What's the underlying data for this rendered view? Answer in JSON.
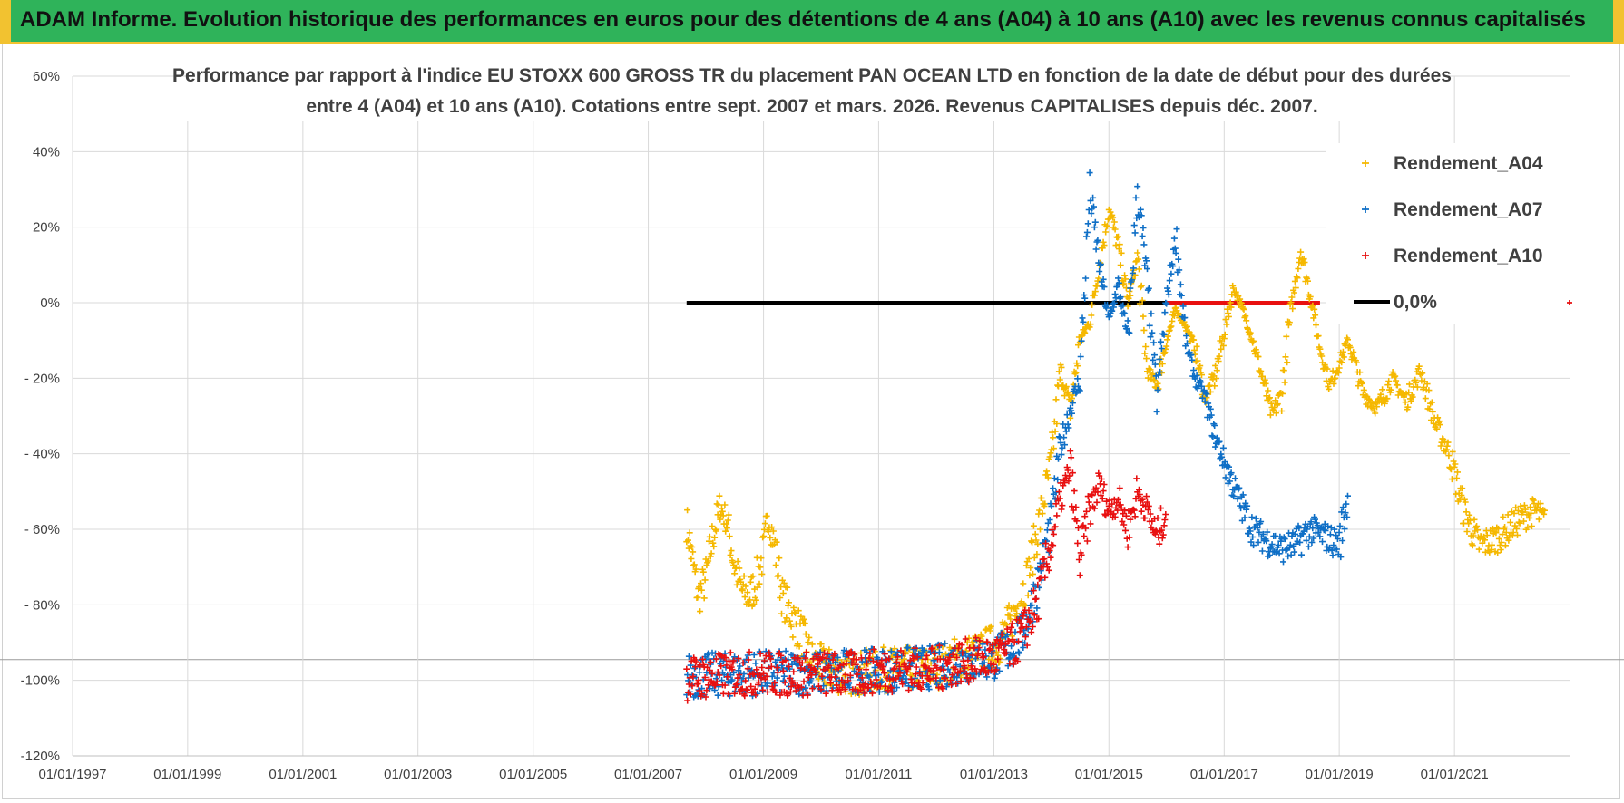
{
  "header": {
    "title": "ADAM Informe. Evolution historique des performances en euros pour des détentions de 4 ans (A04) à 10 ans (A10) avec les revenus connus capitalisés"
  },
  "colors": {
    "banner": "#2fb35a",
    "accent": "#f2c230",
    "a04": "#f5b800",
    "a07": "#0f6fc6",
    "a10": "#e81010",
    "zero": "#000000",
    "grid": "#d9d9d9"
  },
  "chart_data": {
    "type": "scatter",
    "title_line1": "Performance par rapport à l'indice EU STOXX 600 GROSS TR  du placement PAN OCEAN LTD en fonction de la date de début pour des durées",
    "title_line2": "entre 4 (A04) et 10 ans (A10). Cotations entre sept. 2007 et mars. 2026. Revenus CAPITALISES depuis déc. 2007.",
    "xlabel": "",
    "ylabel": "",
    "x_ticks": [
      "01/01/1997",
      "01/01/1999",
      "01/01/2001",
      "01/01/2003",
      "01/01/2005",
      "01/01/2007",
      "01/01/2009",
      "01/01/2011",
      "01/01/2013",
      "01/01/2015",
      "01/01/2017",
      "01/01/2019",
      "01/01/2021"
    ],
    "xlim": [
      "1997-01-01",
      "2023-01-01"
    ],
    "y_ticks": [
      "60%",
      "40%",
      "20%",
      "0%",
      "- 20%",
      "- 40%",
      "- 60%",
      "- 80%",
      "-100%",
      "-120%"
    ],
    "ylim": [
      -120,
      60
    ],
    "grid": true,
    "legend_position": "top-right",
    "legend": [
      "Rendement_A04",
      "Rendement_A07",
      "Rendement_A10",
      "0,0%"
    ],
    "series": [
      {
        "name": "Rendement_A04",
        "color": "#f5b800",
        "points": [
          [
            "2007-09-01",
            -58
          ],
          [
            "2007-10-15",
            -70
          ],
          [
            "2007-11-15",
            -78
          ],
          [
            "2008-01-01",
            -73
          ],
          [
            "2008-02-15",
            -62
          ],
          [
            "2008-04-01",
            -54
          ],
          [
            "2008-05-15",
            -58
          ],
          [
            "2008-07-01",
            -70
          ],
          [
            "2008-08-15",
            -76
          ],
          [
            "2008-10-01",
            -78
          ],
          [
            "2008-11-15",
            -74
          ],
          [
            "2009-01-01",
            -66
          ],
          [
            "2009-02-01",
            -56
          ],
          [
            "2009-03-15",
            -65
          ],
          [
            "2009-05-01",
            -78
          ],
          [
            "2009-07-01",
            -83
          ],
          [
            "2009-09-01",
            -88
          ],
          [
            "2009-11-01",
            -95
          ],
          [
            "2010-02-01",
            -97
          ],
          [
            "2010-06-01",
            -98
          ],
          [
            "2010-10-01",
            -98
          ],
          [
            "2011-02-01",
            -97
          ],
          [
            "2011-06-01",
            -97
          ],
          [
            "2011-10-01",
            -97
          ],
          [
            "2012-02-01",
            -96
          ],
          [
            "2012-06-01",
            -94
          ],
          [
            "2012-10-01",
            -93
          ],
          [
            "2013-02-01",
            -90
          ],
          [
            "2013-05-01",
            -84
          ],
          [
            "2013-08-01",
            -73
          ],
          [
            "2013-11-01",
            -55
          ],
          [
            "2014-01-01",
            -42
          ],
          [
            "2014-03-01",
            -18
          ],
          [
            "2014-05-01",
            -28
          ],
          [
            "2014-07-01",
            -10
          ],
          [
            "2014-09-01",
            -5
          ],
          [
            "2014-11-01",
            10
          ],
          [
            "2015-01-01",
            25
          ],
          [
            "2015-03-01",
            15
          ],
          [
            "2015-05-01",
            0
          ],
          [
            "2015-07-01",
            12
          ],
          [
            "2015-09-01",
            -18
          ],
          [
            "2015-11-01",
            -22
          ],
          [
            "2016-01-01",
            -10
          ],
          [
            "2016-03-01",
            -2
          ],
          [
            "2016-05-01",
            -6
          ],
          [
            "2016-07-01",
            -12
          ],
          [
            "2016-09-01",
            -25
          ],
          [
            "2016-11-01",
            -20
          ],
          [
            "2017-01-01",
            -8
          ],
          [
            "2017-03-01",
            4
          ],
          [
            "2017-05-01",
            -2
          ],
          [
            "2017-07-01",
            -10
          ],
          [
            "2017-09-01",
            -20
          ],
          [
            "2017-11-01",
            -30
          ],
          [
            "2018-01-01",
            -24
          ],
          [
            "2018-03-01",
            -2
          ],
          [
            "2018-05-01",
            14
          ],
          [
            "2018-07-01",
            2
          ],
          [
            "2018-09-01",
            -12
          ],
          [
            "2018-11-01",
            -22
          ],
          [
            "2019-01-01",
            -16
          ],
          [
            "2019-03-01",
            -10
          ],
          [
            "2019-06-01",
            -24
          ],
          [
            "2019-09-01",
            -28
          ],
          [
            "2019-12-01",
            -20
          ],
          [
            "2020-03-01",
            -26
          ],
          [
            "2020-06-01",
            -18
          ],
          [
            "2020-09-01",
            -32
          ],
          [
            "2020-12-01",
            -40
          ],
          [
            "2021-03-01",
            -55
          ],
          [
            "2021-06-01",
            -64
          ],
          [
            "2021-09-01",
            -63
          ],
          [
            "2021-12-01",
            -60
          ],
          [
            "2022-03-01",
            -57
          ],
          [
            "2022-06-01",
            -55
          ],
          [
            "2022-08-01",
            -58
          ]
        ]
      },
      {
        "name": "Rendement_A07",
        "color": "#0f6fc6",
        "points": [
          [
            "2007-09-01",
            -99
          ],
          [
            "2008-01-01",
            -98.5
          ],
          [
            "2008-06-01",
            -98.5
          ],
          [
            "2009-01-01",
            -98
          ],
          [
            "2009-06-01",
            -98
          ],
          [
            "2010-01-01",
            -98
          ],
          [
            "2010-06-01",
            -97.5
          ],
          [
            "2011-01-01",
            -97.5
          ],
          [
            "2011-06-01",
            -97
          ],
          [
            "2012-01-01",
            -96.5
          ],
          [
            "2012-06-01",
            -95
          ],
          [
            "2013-01-01",
            -94
          ],
          [
            "2013-04-01",
            -92
          ],
          [
            "2013-07-01",
            -88
          ],
          [
            "2013-10-01",
            -75
          ],
          [
            "2014-01-01",
            -58
          ],
          [
            "2014-03-01",
            -38
          ],
          [
            "2014-05-01",
            -28
          ],
          [
            "2014-07-01",
            -20
          ],
          [
            "2014-09-01",
            30
          ],
          [
            "2014-11-01",
            10
          ],
          [
            "2015-01-01",
            -5
          ],
          [
            "2015-03-01",
            5
          ],
          [
            "2015-05-01",
            -10
          ],
          [
            "2015-07-01",
            30
          ],
          [
            "2015-09-01",
            5
          ],
          [
            "2015-11-01",
            -25
          ],
          [
            "2016-01-01",
            0
          ],
          [
            "2016-03-01",
            18
          ],
          [
            "2016-05-01",
            -10
          ],
          [
            "2016-07-01",
            -20
          ],
          [
            "2016-09-01",
            -25
          ],
          [
            "2016-11-01",
            -35
          ],
          [
            "2017-01-01",
            -42
          ],
          [
            "2017-04-01",
            -52
          ],
          [
            "2017-07-01",
            -60
          ],
          [
            "2017-10-01",
            -63
          ],
          [
            "2018-01-01",
            -65
          ],
          [
            "2018-04-01",
            -64
          ],
          [
            "2018-07-01",
            -60
          ],
          [
            "2018-10-01",
            -62
          ],
          [
            "2019-01-01",
            -64
          ],
          [
            "2019-03-01",
            -50
          ]
        ]
      },
      {
        "name": "Rendement_A10",
        "color": "#e81010",
        "points": [
          [
            "2007-09-01",
            -99.5
          ],
          [
            "2008-01-01",
            -99
          ],
          [
            "2008-06-01",
            -98.5
          ],
          [
            "2009-01-01",
            -98
          ],
          [
            "2009-06-01",
            -98.5
          ],
          [
            "2010-01-01",
            -98
          ],
          [
            "2010-06-01",
            -98.5
          ],
          [
            "2011-01-01",
            -97.5
          ],
          [
            "2011-06-01",
            -97
          ],
          [
            "2012-01-01",
            -97
          ],
          [
            "2012-06-01",
            -95
          ],
          [
            "2013-01-01",
            -94
          ],
          [
            "2013-04-01",
            -92
          ],
          [
            "2013-07-01",
            -88
          ],
          [
            "2013-10-01",
            -80
          ],
          [
            "2014-01-01",
            -63
          ],
          [
            "2014-03-01",
            -52
          ],
          [
            "2014-05-01",
            -44
          ],
          [
            "2014-07-01",
            -68
          ],
          [
            "2014-09-01",
            -55
          ],
          [
            "2014-11-01",
            -48
          ],
          [
            "2015-01-01",
            -55
          ],
          [
            "2015-03-01",
            -52
          ],
          [
            "2015-05-01",
            -60
          ],
          [
            "2015-07-01",
            -50
          ],
          [
            "2015-09-01",
            -55
          ],
          [
            "2015-11-01",
            -62
          ],
          [
            "2016-01-01",
            -55
          ]
        ]
      }
    ],
    "reference_lines": [
      {
        "name": "0,0%",
        "y": 0,
        "from": "2007-09-01",
        "to": "2016-01-01",
        "color": "#000000"
      },
      {
        "name": "0,0%",
        "y": 0,
        "from": "2016-01-01",
        "to": "2018-09-01",
        "color": "#e81010"
      }
    ]
  }
}
